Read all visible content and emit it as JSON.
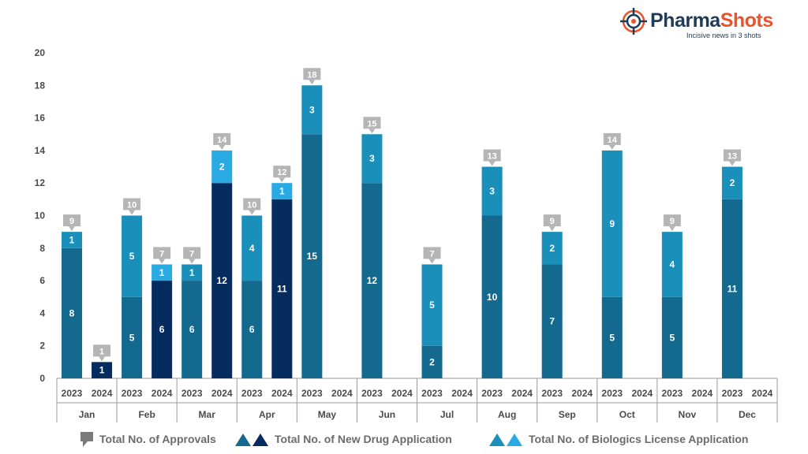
{
  "brand": {
    "name_part1": "Pharma",
    "name_part2": "Shots",
    "tagline": "Incisive news in 3 shots"
  },
  "colors": {
    "nda_2023": "#14698f",
    "nda_2024": "#062b5e",
    "bla_2023": "#1a8fba",
    "bla_2024": "#2aaae2",
    "callout": "#b5b5b5",
    "axis_text": "#4a4a4a"
  },
  "legend": {
    "total": "Total No. of Approvals",
    "nda": "Total No. of New Drug Application",
    "bla": "Total No. of Biologics License Application"
  },
  "chart_data": {
    "type": "bar",
    "stacked": true,
    "ylim": [
      0,
      20
    ],
    "yticks": [
      0,
      2,
      4,
      6,
      8,
      10,
      12,
      14,
      16,
      18,
      20
    ],
    "grid": false,
    "legend_position": "bottom",
    "months": [
      "Jan",
      "Feb",
      "Mar",
      "Apr",
      "May",
      "Jun",
      "Jul",
      "Aug",
      "Sep",
      "Oct",
      "Nov",
      "Dec"
    ],
    "years": [
      "2023",
      "2024"
    ],
    "series": [
      {
        "name": "Total No. of New Drug Application",
        "values_2023": [
          8,
          5,
          6,
          6,
          15,
          12,
          2,
          10,
          7,
          5,
          5,
          11
        ],
        "values_2024": [
          1,
          6,
          12,
          11,
          null,
          null,
          null,
          null,
          null,
          null,
          null,
          null
        ]
      },
      {
        "name": "Total No. of Biologics License Application",
        "values_2023": [
          1,
          5,
          1,
          4,
          3,
          3,
          5,
          3,
          2,
          9,
          4,
          2
        ],
        "values_2024": [
          0,
          1,
          2,
          1,
          null,
          null,
          null,
          null,
          null,
          null,
          null,
          null
        ]
      }
    ],
    "totals_2023": [
      9,
      10,
      7,
      10,
      18,
      15,
      7,
      13,
      9,
      14,
      9,
      13
    ],
    "totals_2024": [
      1,
      7,
      14,
      12,
      null,
      null,
      null,
      null,
      null,
      null,
      null,
      null
    ]
  }
}
